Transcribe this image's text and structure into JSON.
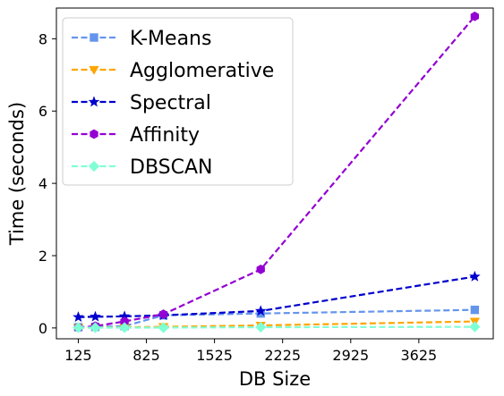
{
  "chart_data": {
    "type": "line",
    "xlabel": "DB Size",
    "ylabel": "Time (seconds)",
    "xlim": [
      -100,
      4390
    ],
    "ylim": [
      -0.3,
      8.85
    ],
    "xticks": [
      125,
      825,
      1525,
      2225,
      2925,
      3625
    ],
    "yticks": [
      0,
      2,
      4,
      6,
      8
    ],
    "grid": false,
    "legend": "top-left",
    "series": [
      {
        "name": "K-Means",
        "color": "#6495ED",
        "marker": "square",
        "x": [
          125,
          300,
          600,
          1000,
          2000,
          4200
        ],
        "y": [
          0.02,
          0.03,
          0.05,
          0.35,
          0.4,
          0.5
        ]
      },
      {
        "name": "Agglomerative",
        "color": "#FFA500",
        "marker": "triangle-down",
        "x": [
          125,
          300,
          600,
          1000,
          2000,
          4200
        ],
        "y": [
          0.01,
          0.01,
          0.02,
          0.03,
          0.07,
          0.18
        ]
      },
      {
        "name": "Spectral",
        "color": "#0000CD",
        "marker": "star",
        "x": [
          125,
          300,
          600,
          1000,
          2000,
          4200
        ],
        "y": [
          0.3,
          0.31,
          0.32,
          0.35,
          0.47,
          1.42
        ]
      },
      {
        "name": "Affinity",
        "color": "#9400D3",
        "marker": "hexagon",
        "x": [
          125,
          300,
          600,
          1000,
          2000,
          4200
        ],
        "y": [
          0.01,
          0.05,
          0.18,
          0.38,
          1.62,
          8.62
        ]
      },
      {
        "name": "DBSCAN",
        "color": "#7FFFD4",
        "marker": "diamond",
        "x": [
          125,
          300,
          600,
          1000,
          2000,
          4200
        ],
        "y": [
          0.01,
          0.01,
          0.01,
          0.01,
          0.02,
          0.03
        ]
      }
    ]
  }
}
